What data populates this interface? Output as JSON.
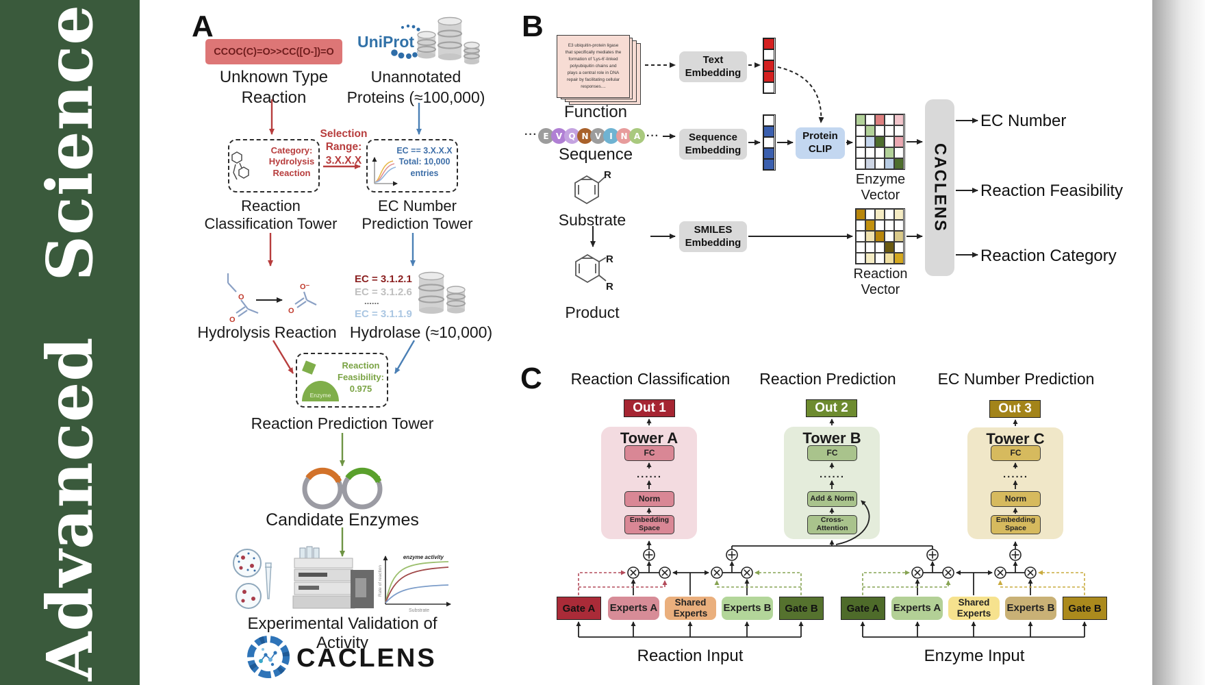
{
  "journal": {
    "name": "Advanced Science"
  },
  "panel_a": {
    "label": "A",
    "smiles_reaction": "CCOC(C)=O>>CC([O-])=O",
    "unknown_type": "Unknown Type\nReaction",
    "uniprot": "UniProt",
    "unannotated": "Unannotated\nProteins (≈100,000)",
    "selection_range": "Selection\nRange:\n3.X.X.X",
    "category_box": "Category:\nHydrolysis\nReaction",
    "ec_box": "EC == 3.X.X.X\nTotal: 10,000\nentries",
    "classification_tower": "Reaction\nClassification Tower",
    "ec_prediction_tower": "EC Number\nPrediction Tower",
    "ec_list": [
      "EC = 3.1.2.1",
      "EC = 3.1.2.6",
      "......",
      "EC = 3.1.1.9"
    ],
    "ec_list_colors": [
      "#8b2020",
      "#bfbfbf",
      "#6a6a6a",
      "#aac6e2"
    ],
    "hydrolysis_reaction": "Hydrolysis Reaction",
    "hydrolase": "Hydrolase (≈10,000)",
    "enzyme_label": "Enzyme",
    "feasibility": "Reaction\nFeasibility:\n0.975",
    "reaction_prediction_tower": "Reaction Prediction Tower",
    "candidate_enzymes": "Candidate Enzymes",
    "activity_graph": {
      "curve_label": "enzyme activity",
      "y_label": "Rate of reaction",
      "x_label": "Substrate"
    },
    "validation": "Experimental Validation of Activity",
    "caclens_wordmark": "CACLENS"
  },
  "panel_b": {
    "label": "B",
    "function_card": "E3 ubiquitin-protein ligase\nthat specifically mediates the\nformation of 'Lys-6'-linked\npolyubiquitin chains and\nplays a central role in DNA\nrepair by facilitating cellular\nresponses....",
    "function_label": "Function",
    "ellipsis": "···",
    "residues": [
      {
        "letter": "E",
        "color": "#9c9c9c"
      },
      {
        "letter": "V",
        "color": "#b07fd4"
      },
      {
        "letter": "Q",
        "color": "#c4a3e0"
      },
      {
        "letter": "N",
        "color": "#a9612a"
      },
      {
        "letter": "V",
        "color": "#9c9c9c"
      },
      {
        "letter": "I",
        "color": "#6fb3d2"
      },
      {
        "letter": "N",
        "color": "#e79c9c"
      },
      {
        "letter": "A",
        "color": "#a9c97e"
      }
    ],
    "sequence_label": "Sequence",
    "substrate_label": "Substrate",
    "product_label": "Product",
    "r_group": "R",
    "text_embedding": "Text\nEmbedding",
    "sequence_embedding": "Sequence\nEmbedding",
    "smiles_embedding": "SMILES\nEmbedding",
    "protein_clip": "Protein\nCLIP",
    "text_vector": [
      "#d42020",
      "#ffffff",
      "#d42020",
      "#d42020",
      "#ffffff"
    ],
    "sequence_vector": [
      "#ffffff",
      "#3b5fae",
      "#ffffff",
      "#3b5fae",
      "#3b5fae"
    ],
    "enzyme_matrix": [
      [
        "#b2d199",
        "#ffffff",
        "#dd7f7f",
        "#ffffff",
        "#f2c6cc"
      ],
      [
        "#ffffff",
        "#b2d199",
        "#ffffff",
        "#ffffff",
        "#ffffff"
      ],
      [
        "#ffffff",
        "#c6d7ef",
        "#4e6e2e",
        "#ffffff",
        "#eaa9b2"
      ],
      [
        "#ffffff",
        "#ffffff",
        "#ffffff",
        "#b2d199",
        "#ffffff"
      ],
      [
        "#ffffff",
        "#cdd5e4",
        "#ffffff",
        "#b8cce4",
        "#4e6e2e"
      ]
    ],
    "reaction_matrix": [
      [
        "#b8860b",
        "#ffffff",
        "#f5ecc4",
        "#ffffff",
        "#f5ecc4"
      ],
      [
        "#ffffff",
        "#c29110",
        "#ffffff",
        "#ffffff",
        "#ffffff"
      ],
      [
        "#ffffff",
        "#f0e2b0",
        "#b8860b",
        "#ffffff",
        "#d9c98a"
      ],
      [
        "#ffffff",
        "#ffffff",
        "#ffffff",
        "#6b5a10",
        "#ffffff"
      ],
      [
        "#ffffff",
        "#f5ecc4",
        "#ffffff",
        "#f0dfa0",
        "#d4a820"
      ]
    ],
    "enzyme_vector_label": "Enzyme Vector",
    "reaction_vector_label": "Reaction Vector",
    "caclens_bar": "CACLENS",
    "outputs": [
      "EC Number",
      "Reaction Feasibility",
      "Reaction Category"
    ]
  },
  "panel_c": {
    "label": "C",
    "columns": [
      {
        "title": "Reaction Classification",
        "out": "Out 1",
        "tower": "Tower A",
        "fc": "FC",
        "dots": "......",
        "mid": "Norm",
        "bottom": "Embedding\nSpace"
      },
      {
        "title": "Reaction Prediction",
        "out": "Out 2",
        "tower": "Tower B",
        "fc": "FC",
        "dots": "......",
        "mid": "Add & Norm",
        "bottom": "Cross-\nAttention"
      },
      {
        "title": "EC Number Prediction",
        "out": "Out 3",
        "tower": "Tower C",
        "fc": "FC",
        "dots": "......",
        "mid": "Norm",
        "bottom": "Embedding\nSpace"
      }
    ],
    "moe": [
      {
        "gate_a": "Gate A",
        "experts_a": "Experts A",
        "shared": "Shared\nExperts",
        "experts_b": "Experts B",
        "gate_b": "Gate B",
        "input_label": "Reaction Input"
      },
      {
        "gate_a": "Gate A",
        "experts_a": "Experts A",
        "shared": "Shared\nExperts",
        "experts_b": "Experts B",
        "gate_b": "Gate B",
        "input_label": "Enzyme Input"
      }
    ]
  },
  "icons": {
    "database_icon": "stacked-cylinders",
    "plasmid_icon": "circular-dna",
    "enzyme_icon": "green-enzyme-blob",
    "uniprot_dots_icon": "dotted-swirl",
    "caclens_logo_icon": "blue-aperture-molecule",
    "multiply_node_icon": "circled-x",
    "add_node_icon": "circled-plus"
  },
  "colors": {
    "sidebar_green": "#3a5a3c",
    "red_flow": "#b73d3d",
    "blue_flow": "#4a7fb5",
    "green_flow": "#6e9444",
    "tower_a": "#f3dbe0",
    "tower_a_box": "#d98795",
    "out1": "#a52532",
    "tower_b": "#e4ecdb",
    "tower_b_box": "#a9c38c",
    "out2": "#6d8b2f",
    "tower_c": "#f0e7c8",
    "tower_c_box": "#d6ba5e",
    "out3": "#a3841a",
    "gate_a1": "#aa2b38",
    "experts_a1": "#d78c97",
    "shared1": "#eaaf7d",
    "experts_b1": "#b3d69a",
    "gate_b1": "#55722e",
    "gate_a2": "#4e6b2a",
    "experts_a2": "#b3d096",
    "shared2": "#f6e28e",
    "experts_b2": "#c9b176",
    "gate_b2": "#ab8a1d"
  }
}
